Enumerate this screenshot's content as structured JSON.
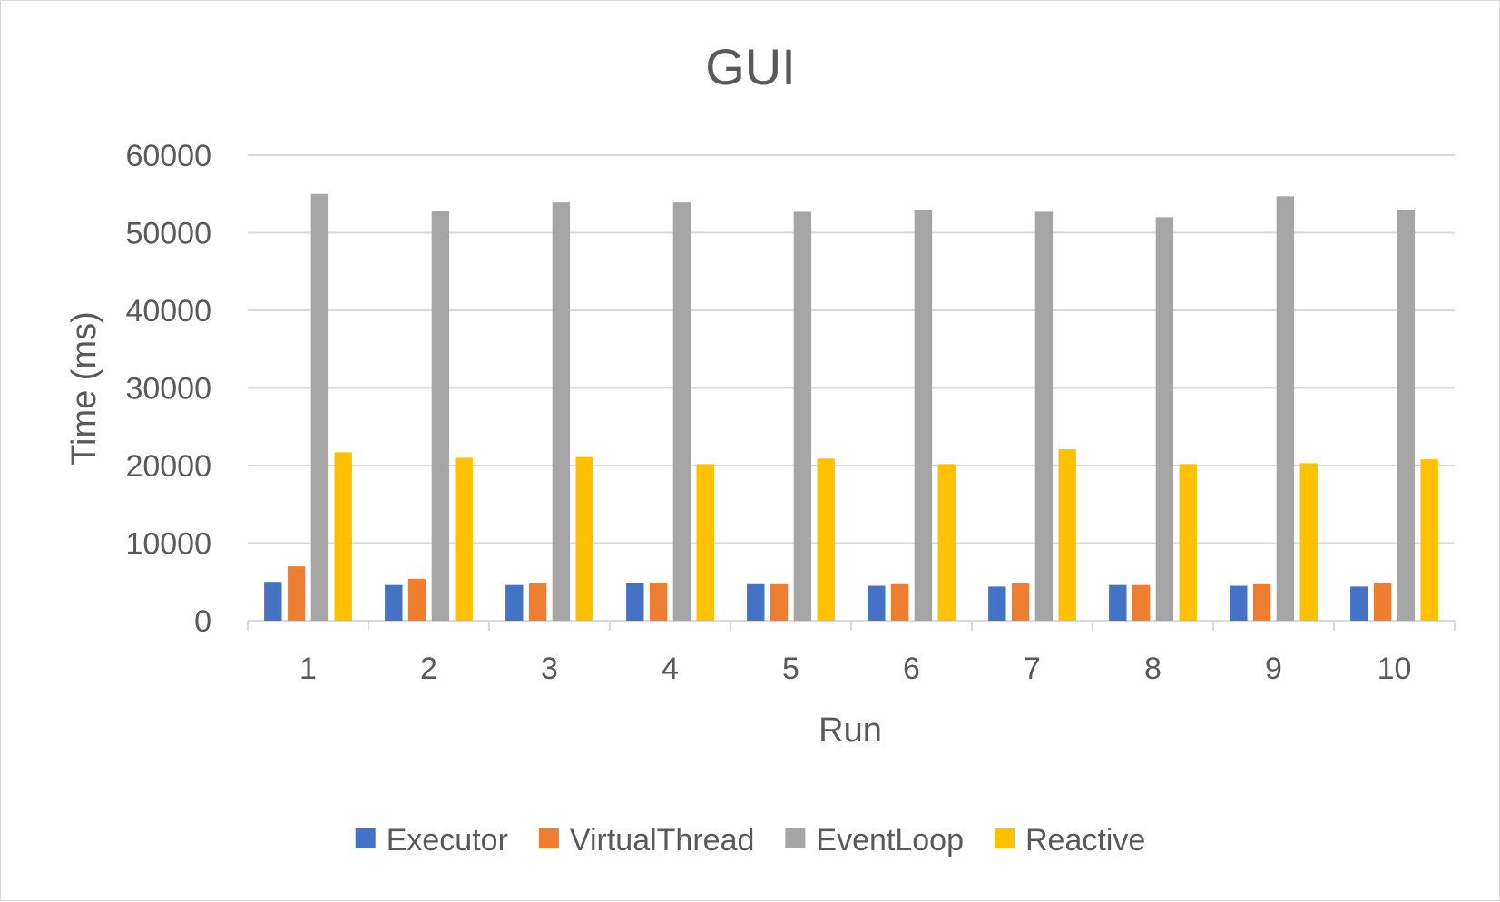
{
  "chart_data": {
    "type": "bar",
    "title": "GUI",
    "xlabel": "Run",
    "ylabel": "Time (ms)",
    "categories": [
      "1",
      "2",
      "3",
      "4",
      "5",
      "6",
      "7",
      "8",
      "9",
      "10"
    ],
    "ylim": [
      0,
      60000
    ],
    "yticks": [
      0,
      10000,
      20000,
      30000,
      40000,
      50000,
      60000
    ],
    "grid": true,
    "legend_position": "bottom",
    "series": [
      {
        "name": "Executor",
        "color": "#4472c4",
        "values": [
          5000,
          4600,
          4600,
          4800,
          4700,
          4500,
          4400,
          4600,
          4500,
          4400
        ]
      },
      {
        "name": "VirtualThread",
        "color": "#ed7d31",
        "values": [
          7000,
          5400,
          4800,
          4900,
          4700,
          4700,
          4800,
          4600,
          4700,
          4800
        ]
      },
      {
        "name": "EventLoop",
        "color": "#a5a5a5",
        "values": [
          55000,
          52800,
          53900,
          53900,
          52700,
          53000,
          52700,
          52000,
          54700,
          53000
        ]
      },
      {
        "name": "Reactive",
        "color": "#ffc000",
        "values": [
          21700,
          21000,
          21100,
          20200,
          20900,
          20200,
          22100,
          20200,
          20300,
          20800
        ]
      }
    ]
  }
}
